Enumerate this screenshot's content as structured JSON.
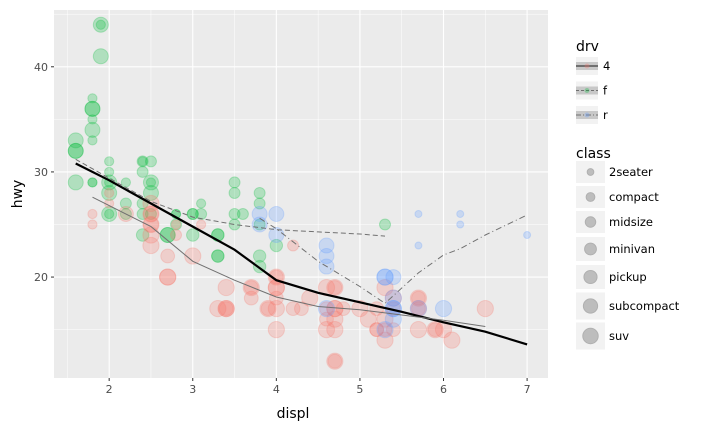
{
  "chart_data": {
    "type": "scatter",
    "xlabel": "displ",
    "ylabel": "hwy",
    "xlim": [
      1.34,
      7.25
    ],
    "ylim": [
      10.4,
      45.4
    ],
    "x_ticks": [
      2,
      3,
      4,
      5,
      6,
      7
    ],
    "y_ticks": [
      20,
      30,
      40
    ],
    "grid": true,
    "legend_position": "right",
    "drv_legend": {
      "title": "drv",
      "entries": [
        "4",
        "f",
        "r"
      ]
    },
    "class_legend": {
      "title": "class",
      "entries": [
        "2seater",
        "compact",
        "midsize",
        "minivan",
        "pickup",
        "subcompact",
        "suv"
      ]
    },
    "colors": {
      "4": "#F8766D",
      "f": "#00BA38",
      "r": "#619CFF",
      "overall": "#000000",
      "smooth": "#707070"
    },
    "points": [
      [
        1.8,
        29,
        "f",
        "compact"
      ],
      [
        1.8,
        29,
        "f",
        "compact"
      ],
      [
        2.0,
        31,
        "f",
        "compact"
      ],
      [
        2.0,
        30,
        "f",
        "compact"
      ],
      [
        2.8,
        26,
        "f",
        "compact"
      ],
      [
        2.8,
        26,
        "f",
        "compact"
      ],
      [
        3.1,
        27,
        "f",
        "compact"
      ],
      [
        2.4,
        27,
        "f",
        "midsize"
      ],
      [
        2.4,
        30,
        "f",
        "midsize"
      ],
      [
        3.1,
        26,
        "f",
        "midsize"
      ],
      [
        3.5,
        29,
        "f",
        "midsize"
      ],
      [
        3.6,
        26,
        "f",
        "midsize"
      ],
      [
        2.4,
        24,
        "f",
        "minivan"
      ],
      [
        3.0,
        24,
        "f",
        "minivan"
      ],
      [
        3.3,
        22,
        "f",
        "minivan"
      ],
      [
        3.3,
        22,
        "f",
        "minivan"
      ],
      [
        3.3,
        24,
        "f",
        "minivan"
      ],
      [
        3.3,
        24,
        "f",
        "minivan"
      ],
      [
        3.8,
        22,
        "f",
        "minivan"
      ],
      [
        3.8,
        21,
        "f",
        "minivan"
      ],
      [
        4.0,
        23,
        "f",
        "minivan"
      ],
      [
        1.6,
        33,
        "f",
        "subcompact"
      ],
      [
        1.6,
        32,
        "f",
        "subcompact"
      ],
      [
        1.6,
        32,
        "f",
        "subcompact"
      ],
      [
        1.6,
        29,
        "f",
        "subcompact"
      ],
      [
        1.8,
        34,
        "f",
        "subcompact"
      ],
      [
        1.8,
        36,
        "f",
        "subcompact"
      ],
      [
        1.8,
        36,
        "f",
        "subcompact"
      ],
      [
        2.0,
        29,
        "f",
        "subcompact"
      ],
      [
        2.0,
        26,
        "f",
        "subcompact"
      ],
      [
        2.0,
        28,
        "f",
        "subcompact"
      ],
      [
        2.7,
        24,
        "f",
        "subcompact"
      ],
      [
        2.7,
        24,
        "f",
        "subcompact"
      ],
      [
        1.9,
        44,
        "f",
        "subcompact"
      ],
      [
        1.9,
        41,
        "f",
        "subcompact"
      ],
      [
        2.5,
        29,
        "f",
        "subcompact"
      ],
      [
        2.5,
        28,
        "f",
        "subcompact"
      ],
      [
        1.9,
        44,
        "f",
        "compact"
      ],
      [
        2.0,
        29,
        "f",
        "compact"
      ],
      [
        2.0,
        26,
        "f",
        "compact"
      ],
      [
        2.5,
        29,
        "f",
        "compact"
      ],
      [
        1.8,
        35,
        "f",
        "compact"
      ],
      [
        1.8,
        37,
        "f",
        "compact"
      ],
      [
        1.8,
        33,
        "f",
        "compact"
      ],
      [
        2.2,
        29,
        "f",
        "compact"
      ],
      [
        2.4,
        31,
        "f",
        "compact"
      ],
      [
        2.4,
        26,
        "f",
        "midsize"
      ],
      [
        2.5,
        26,
        "f",
        "midsize"
      ],
      [
        2.2,
        26,
        "f",
        "midsize"
      ],
      [
        2.2,
        27,
        "f",
        "midsize"
      ],
      [
        2.4,
        31,
        "f",
        "midsize"
      ],
      [
        3.0,
        26,
        "f",
        "midsize"
      ],
      [
        3.5,
        28,
        "f",
        "midsize"
      ],
      [
        2.5,
        31,
        "f",
        "midsize"
      ],
      [
        3.5,
        26,
        "f",
        "midsize"
      ],
      [
        3.5,
        25,
        "f",
        "midsize"
      ],
      [
        3.8,
        27,
        "f",
        "midsize"
      ],
      [
        3.8,
        28,
        "f",
        "midsize"
      ],
      [
        3.8,
        25,
        "f",
        "midsize"
      ],
      [
        5.3,
        25,
        "f",
        "midsize"
      ],
      [
        3.0,
        26,
        "f",
        "midsize"
      ],
      [
        2.8,
        25,
        "f",
        "midsize"
      ],
      [
        1.8,
        26,
        "4",
        "compact"
      ],
      [
        1.8,
        25,
        "4",
        "compact"
      ],
      [
        2.0,
        28,
        "4",
        "compact"
      ],
      [
        2.0,
        27,
        "4",
        "compact"
      ],
      [
        2.8,
        25,
        "4",
        "compact"
      ],
      [
        3.1,
        25,
        "4",
        "compact"
      ],
      [
        2.8,
        24,
        "4",
        "midsize"
      ],
      [
        4.2,
        23,
        "4",
        "midsize"
      ],
      [
        2.5,
        25,
        "4",
        "suv"
      ],
      [
        2.5,
        24,
        "4",
        "suv"
      ],
      [
        2.5,
        27,
        "4",
        "suv"
      ],
      [
        2.5,
        26,
        "4",
        "suv"
      ],
      [
        2.5,
        23,
        "4",
        "suv"
      ],
      [
        2.2,
        26,
        "4",
        "subcompact"
      ],
      [
        2.5,
        26,
        "4",
        "subcompact"
      ],
      [
        2.5,
        25,
        "4",
        "subcompact"
      ],
      [
        2.7,
        20,
        "4",
        "suv"
      ],
      [
        2.7,
        20,
        "4",
        "suv"
      ],
      [
        3.4,
        19,
        "4",
        "suv"
      ],
      [
        3.4,
        17,
        "4",
        "suv"
      ],
      [
        4.0,
        20,
        "4",
        "suv"
      ],
      [
        4.7,
        17,
        "4",
        "suv"
      ],
      [
        2.7,
        22,
        "4",
        "pickup"
      ],
      [
        3.4,
        17,
        "4",
        "pickup"
      ],
      [
        4.0,
        18,
        "4",
        "pickup"
      ],
      [
        4.0,
        20,
        "4",
        "pickup"
      ],
      [
        4.7,
        15,
        "4",
        "suv"
      ],
      [
        5.7,
        18,
        "4",
        "suv"
      ],
      [
        3.7,
        19,
        "4",
        "pickup"
      ],
      [
        3.7,
        18,
        "4",
        "pickup"
      ],
      [
        3.9,
        17,
        "4",
        "pickup"
      ],
      [
        4.7,
        19,
        "4",
        "pickup"
      ],
      [
        4.7,
        12,
        "4",
        "pickup"
      ],
      [
        5.2,
        17,
        "4",
        "pickup"
      ],
      [
        5.2,
        15,
        "4",
        "pickup"
      ],
      [
        3.9,
        17,
        "4",
        "suv"
      ],
      [
        4.7,
        12,
        "4",
        "suv"
      ],
      [
        4.7,
        16,
        "4",
        "suv"
      ],
      [
        5.7,
        17,
        "4",
        "suv"
      ],
      [
        5.9,
        15,
        "4",
        "suv"
      ],
      [
        4.2,
        17,
        "4",
        "pickup"
      ],
      [
        4.6,
        17,
        "4",
        "pickup"
      ],
      [
        4.6,
        16,
        "4",
        "pickup"
      ],
      [
        5.4,
        15,
        "4",
        "pickup"
      ],
      [
        5.4,
        17,
        "4",
        "pickup"
      ],
      [
        4.0,
        17,
        "4",
        "suv"
      ],
      [
        4.0,
        19,
        "4",
        "suv"
      ],
      [
        4.6,
        19,
        "4",
        "suv"
      ],
      [
        5.0,
        17,
        "4",
        "suv"
      ],
      [
        3.0,
        22,
        "4",
        "suv"
      ],
      [
        3.7,
        19,
        "4",
        "suv"
      ],
      [
        4.7,
        19,
        "4",
        "suv"
      ],
      [
        5.7,
        15,
        "4",
        "suv"
      ],
      [
        6.1,
        14,
        "4",
        "suv"
      ],
      [
        5.3,
        14,
        "4",
        "suv"
      ],
      [
        5.3,
        16,
        "4",
        "suv"
      ],
      [
        4.3,
        17,
        "4",
        "pickup"
      ],
      [
        4.8,
        17,
        "4",
        "pickup"
      ],
      [
        5.3,
        19,
        "4",
        "suv"
      ],
      [
        4.0,
        15,
        "4",
        "suv"
      ],
      [
        4.4,
        18,
        "4",
        "suv"
      ],
      [
        6.5,
        17,
        "4",
        "suv"
      ],
      [
        5.2,
        15,
        "4",
        "pickup"
      ],
      [
        5.3,
        15,
        "4",
        "pickup"
      ],
      [
        5.7,
        18,
        "4",
        "pickup"
      ],
      [
        5.9,
        15,
        "4",
        "pickup"
      ],
      [
        4.6,
        15,
        "4",
        "suv"
      ],
      [
        4.7,
        17,
        "4",
        "suv"
      ],
      [
        3.3,
        17,
        "4",
        "suv"
      ],
      [
        5.4,
        18,
        "4",
        "suv"
      ],
      [
        5.7,
        17,
        "4",
        "pickup"
      ],
      [
        4.0,
        19,
        "4",
        "suv"
      ],
      [
        6.0,
        15,
        "4",
        "suv"
      ],
      [
        3.4,
        17,
        "4",
        "suv"
      ],
      [
        5.1,
        16,
        "4",
        "suv"
      ],
      [
        5.7,
        26,
        "r",
        "2seater"
      ],
      [
        5.7,
        23,
        "r",
        "2seater"
      ],
      [
        6.2,
        26,
        "r",
        "2seater"
      ],
      [
        6.2,
        25,
        "r",
        "2seater"
      ],
      [
        7.0,
        24,
        "r",
        "2seater"
      ],
      [
        3.8,
        26,
        "r",
        "subcompact"
      ],
      [
        3.8,
        25,
        "r",
        "subcompact"
      ],
      [
        4.0,
        26,
        "r",
        "subcompact"
      ],
      [
        4.0,
        24,
        "r",
        "subcompact"
      ],
      [
        4.6,
        23,
        "r",
        "subcompact"
      ],
      [
        4.6,
        22,
        "r",
        "subcompact"
      ],
      [
        4.6,
        21,
        "r",
        "subcompact"
      ],
      [
        5.4,
        20,
        "r",
        "subcompact"
      ],
      [
        5.3,
        20,
        "r",
        "suv"
      ],
      [
        5.3,
        15,
        "r",
        "suv"
      ],
      [
        5.3,
        20,
        "r",
        "suv"
      ],
      [
        5.7,
        17,
        "r",
        "suv"
      ],
      [
        6.0,
        17,
        "r",
        "suv"
      ],
      [
        5.4,
        17,
        "r",
        "suv"
      ],
      [
        5.4,
        16,
        "r",
        "suv"
      ],
      [
        5.4,
        18,
        "r",
        "suv"
      ],
      [
        4.6,
        17,
        "r",
        "suv"
      ],
      [
        5.4,
        17,
        "r",
        "suv"
      ]
    ],
    "smooth_lines": [
      {
        "name": "overall",
        "linetype": "solid",
        "x": [
          1.6,
          2.0,
          2.5,
          3.0,
          3.5,
          4.0,
          4.5,
          5.0,
          5.5,
          6.0,
          6.5,
          7.0
        ],
        "y": [
          30.8,
          29.2,
          27.0,
          24.8,
          22.6,
          19.7,
          18.5,
          17.6,
          16.7,
          15.7,
          14.8,
          13.6
        ]
      },
      {
        "name": "4",
        "linetype": "solid",
        "x": [
          1.8,
          2.5,
          3.0,
          3.5,
          4.0,
          4.5,
          5.0,
          6.0,
          6.5
        ],
        "y": [
          27.6,
          24.8,
          21.5,
          19.7,
          18.1,
          17.2,
          16.9,
          15.9,
          15.3
        ]
      },
      {
        "name": "f",
        "linetype": "dashed",
        "x": [
          1.6,
          2.0,
          2.5,
          3.0,
          3.5,
          4.0,
          4.5,
          5.0,
          5.3
        ],
        "y": [
          31.2,
          29.4,
          27.2,
          25.7,
          25.0,
          24.5,
          24.3,
          24.1,
          23.9
        ]
      },
      {
        "name": "r",
        "linetype": "dashdot",
        "x": [
          3.8,
          4.0,
          4.5,
          5.0,
          5.3,
          5.7,
          6.0,
          6.2,
          6.5,
          7.0
        ],
        "y": [
          25.6,
          24.6,
          21.5,
          19.1,
          17.5,
          20.4,
          22.1,
          22.7,
          24.0,
          25.9
        ]
      }
    ]
  }
}
